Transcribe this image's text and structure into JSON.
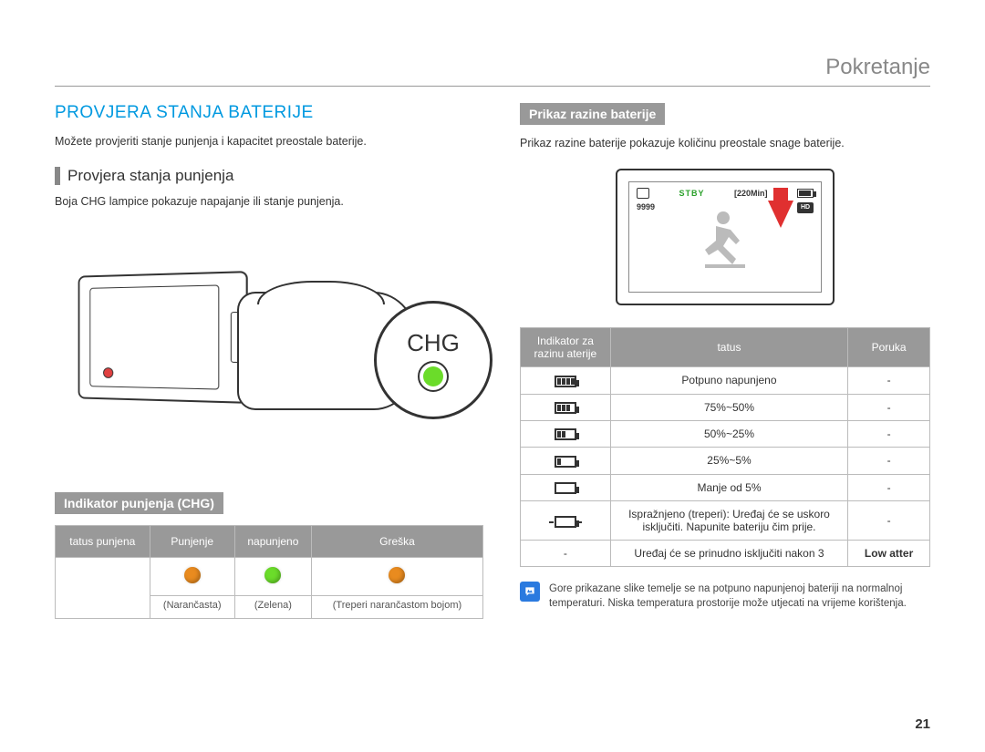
{
  "page": {
    "header": "Pokretanje",
    "number": "21"
  },
  "left": {
    "main_heading": "PROVJERA STANJA BATERIJE",
    "intro": "Možete provjeriti stanje punjenja i kapacitet preostale baterije.",
    "sub_heading": "Provjera stanja punjenja",
    "sub_body": "Boja CHG lampice pokazuje napajanje ili stanje punjenja.",
    "chg_callout": "CHG",
    "chg_led_color": "#6bdc2a",
    "chg_table": {
      "headers": [
        "tatus punjena",
        "Punjenje",
        "napunjeno",
        "Greška"
      ],
      "colors": [
        "#e98b1f",
        "#6bdc2a",
        "#e98b1f"
      ],
      "labels": [
        "(Narančasta)",
        "(Zelena)",
        "(Treperi narančastom bojom)"
      ]
    },
    "box_heading": "Indikator punjenja (CHG)"
  },
  "right": {
    "box_heading": "Prikaz razine baterije",
    "intro": "Prikaz razine baterije pokazuje količinu preostale snage baterije.",
    "lcd": {
      "stby": "STBY",
      "time": "[220Min]",
      "counter": "9999",
      "hd": "HD"
    },
    "table": {
      "headers": [
        "Indikator za razinu aterije",
        "tatus",
        "Poruka"
      ],
      "rows": [
        {
          "bars": 4,
          "blink": false,
          "status": "Potpuno napunjeno",
          "msg": "-"
        },
        {
          "bars": 3,
          "blink": false,
          "status": "75%~50%",
          "msg": "-"
        },
        {
          "bars": 2,
          "blink": false,
          "status": "50%~25%",
          "msg": "-"
        },
        {
          "bars": 1,
          "blink": false,
          "status": "25%~5%",
          "msg": "-"
        },
        {
          "bars": 0,
          "blink": false,
          "status": "Manje od 5%",
          "msg": "-"
        },
        {
          "bars": 0,
          "blink": true,
          "status": "Ispražnjeno (treperi): Uređaj će se uskoro isključiti. Napunite bateriju čim prije.",
          "msg": "-"
        },
        {
          "bars": -1,
          "blink": false,
          "status": "Uređaj će se prinudno isključiti nakon 3",
          "msg": "Low atter"
        }
      ]
    },
    "note": "Gore prikazane slike temelje se na potpuno napunjenoj bateriji na normalnoj temperaturi. Niska temperatura prostorije može utjecati na vrijeme korištenja."
  },
  "colors": {
    "accent_blue": "#0099e0",
    "header_gray": "#999999",
    "orange": "#e98b1f",
    "green": "#6bdc2a",
    "red_arrow": "#e03030",
    "note_blue": "#2a7adf"
  }
}
